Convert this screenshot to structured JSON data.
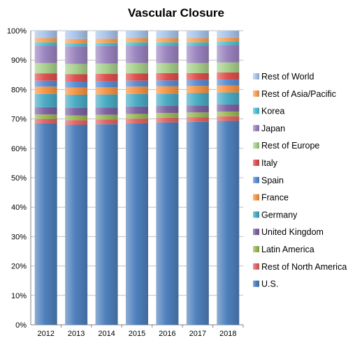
{
  "chart_data": {
    "type": "bar",
    "stacked": true,
    "percent": true,
    "title": "Vascular Closure",
    "xlabel": "",
    "ylabel": "",
    "ylim": [
      0,
      100
    ],
    "yticks": [
      "0%",
      "10%",
      "20%",
      "30%",
      "40%",
      "50%",
      "60%",
      "70%",
      "80%",
      "90%",
      "100%"
    ],
    "grid": "horizontal",
    "legend_position": "right",
    "categories": [
      "2012",
      "2013",
      "2014",
      "2015",
      "2016",
      "2017",
      "2018"
    ],
    "series": [
      {
        "name": "U.S.",
        "color": "#4F81BD",
        "values": [
          68.5,
          68.0,
          68.2,
          68.5,
          68.8,
          69.0,
          69.3
        ]
      },
      {
        "name": "Rest of North America",
        "color": "#E06666",
        "values": [
          1.5,
          1.6,
          1.6,
          1.6,
          1.6,
          1.6,
          1.6
        ]
      },
      {
        "name": "Latin America",
        "color": "#9BBB59",
        "values": [
          1.5,
          1.6,
          1.6,
          1.6,
          1.6,
          1.6,
          1.6
        ]
      },
      {
        "name": "United Kingdom",
        "color": "#8064A2",
        "values": [
          2.5,
          2.5,
          2.5,
          2.5,
          2.4,
          2.4,
          2.4
        ]
      },
      {
        "name": "Germany",
        "color": "#4BACC6",
        "values": [
          4.5,
          4.5,
          4.4,
          4.3,
          4.2,
          4.2,
          4.1
        ]
      },
      {
        "name": "France",
        "color": "#F79646",
        "values": [
          2.5,
          2.5,
          2.5,
          2.5,
          2.5,
          2.4,
          2.4
        ]
      },
      {
        "name": "Spain",
        "color": "#5B8FD6",
        "values": [
          2.0,
          2.0,
          2.0,
          2.0,
          2.0,
          2.0,
          2.0
        ]
      },
      {
        "name": "Italy",
        "color": "#E05050",
        "values": [
          2.5,
          2.5,
          2.5,
          2.5,
          2.5,
          2.4,
          2.4
        ]
      },
      {
        "name": "Rest of Europe",
        "color": "#A9D18E",
        "values": [
          3.5,
          3.5,
          3.5,
          3.5,
          3.4,
          3.4,
          3.4
        ]
      },
      {
        "name": "Japan",
        "color": "#9C85C0",
        "values": [
          6.0,
          6.0,
          6.0,
          6.0,
          6.0,
          6.0,
          6.0
        ]
      },
      {
        "name": "Korea",
        "color": "#4BC3D6",
        "values": [
          1.0,
          1.0,
          1.0,
          1.0,
          1.0,
          1.0,
          1.0
        ]
      },
      {
        "name": "Rest of Asia/Pacific",
        "color": "#F7A35C",
        "values": [
          1.5,
          1.5,
          1.5,
          1.5,
          1.5,
          1.5,
          1.5
        ]
      },
      {
        "name": "Rest of World",
        "color": "#A9C6EC",
        "values": [
          2.5,
          2.8,
          2.7,
          2.5,
          2.5,
          2.5,
          2.3
        ]
      }
    ]
  }
}
